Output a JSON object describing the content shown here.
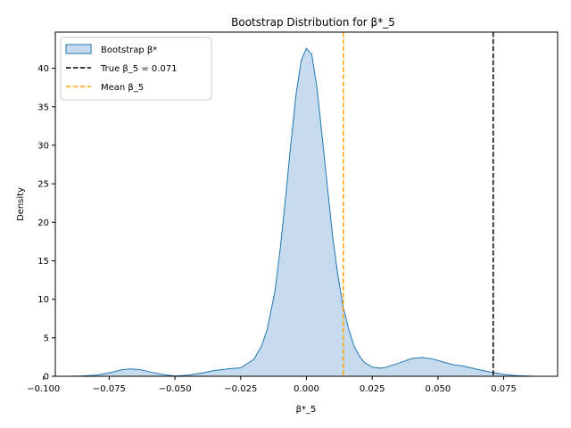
{
  "chart_data": {
    "type": "area",
    "title": "Bootstrap Distribution for β*_5",
    "xlabel": "β*_5",
    "ylabel": "Density",
    "xlim": [
      -0.0955,
      0.0955
    ],
    "ylim": [
      0,
      44.7
    ],
    "x_ticks": [
      -0.1,
      -0.075,
      -0.05,
      -0.025,
      0.0,
      0.025,
      0.05,
      0.075
    ],
    "x_tick_labels": [
      "−0.100",
      "−0.075",
      "−0.050",
      "−0.025",
      "0.000",
      "0.025",
      "0.050",
      "0.075"
    ],
    "y_ticks": [
      0,
      5,
      10,
      15,
      20,
      25,
      30,
      35,
      40
    ],
    "y_tick_labels": [
      "0",
      "5",
      "10",
      "15",
      "20",
      "25",
      "30",
      "35",
      "40"
    ],
    "grid": false,
    "legend_placement": "top-left",
    "series": [
      {
        "name": "Bootstrap β*",
        "kind": "kde",
        "fill_color": "#c6dbed",
        "line_color": "#1f77b4",
        "x": [
          -0.091,
          -0.085,
          -0.08,
          -0.075,
          -0.07,
          -0.067,
          -0.063,
          -0.06,
          -0.055,
          -0.05,
          -0.045,
          -0.04,
          -0.035,
          -0.03,
          -0.025,
          -0.02,
          -0.017,
          -0.015,
          -0.012,
          -0.01,
          -0.008,
          -0.006,
          -0.004,
          -0.002,
          0.0,
          0.002,
          0.004,
          0.006,
          0.008,
          0.01,
          0.012,
          0.014,
          0.016,
          0.018,
          0.02,
          0.022,
          0.025,
          0.028,
          0.03,
          0.035,
          0.04,
          0.044,
          0.048,
          0.052,
          0.056,
          0.06,
          0.065,
          0.07,
          0.075,
          0.08,
          0.087
        ],
        "y": [
          0.0,
          0.05,
          0.15,
          0.45,
          0.85,
          0.95,
          0.85,
          0.6,
          0.25,
          0.05,
          0.15,
          0.4,
          0.75,
          0.95,
          1.1,
          2.2,
          4.0,
          6.0,
          11.0,
          16.5,
          23.0,
          30.0,
          36.5,
          41.0,
          42.6,
          41.8,
          37.5,
          31.0,
          24.5,
          18.0,
          13.0,
          9.0,
          6.2,
          4.0,
          2.7,
          1.8,
          1.2,
          1.05,
          1.15,
          1.7,
          2.3,
          2.45,
          2.25,
          1.85,
          1.5,
          1.3,
          0.9,
          0.55,
          0.25,
          0.08,
          0.0
        ]
      }
    ],
    "reference_lines": [
      {
        "name": "True β_5 = 0.071",
        "x": 0.071,
        "color": "#000000",
        "style": "dashed"
      },
      {
        "name": "Mean β_5",
        "x": 0.014,
        "color": "#ffa500",
        "style": "dashed"
      }
    ]
  }
}
